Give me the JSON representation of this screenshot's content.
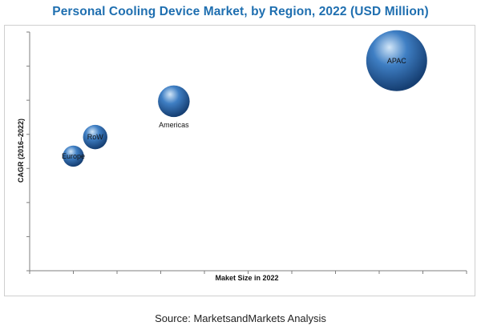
{
  "header": {
    "title": "Personal Cooling Device Market, by Region, 2022 (USD Million)"
  },
  "footer": {
    "source": "Source: MarketsandMarkets Analysis"
  },
  "chart_data": {
    "type": "bubble",
    "title": "Personal Cooling Device Market, by Region, 2022 (USD Million)",
    "xlabel": "Maket Size in 2022",
    "ylabel": "CAGR (2016–2022)",
    "xlim": [
      0,
      100
    ],
    "ylim": [
      0,
      100
    ],
    "grid": false,
    "legend": "none",
    "note": "axes carry no numeric tick labels; positions and bubble sizes are relative",
    "points": [
      {
        "label": "Europe",
        "x": 10,
        "y": 48,
        "size": 12
      },
      {
        "label": "RoW",
        "x": 15,
        "y": 56,
        "size": 16
      },
      {
        "label": "Americas",
        "x": 33,
        "y": 71,
        "size": 27
      },
      {
        "label": "APAC",
        "x": 84,
        "y": 88,
        "size": 100
      }
    ],
    "colors": {
      "bubble_highlight": "#d2e6f8",
      "bubble_mid": "#3f7fc4",
      "bubble_dark": "#163f73",
      "axis": "#7f7f7f"
    }
  }
}
